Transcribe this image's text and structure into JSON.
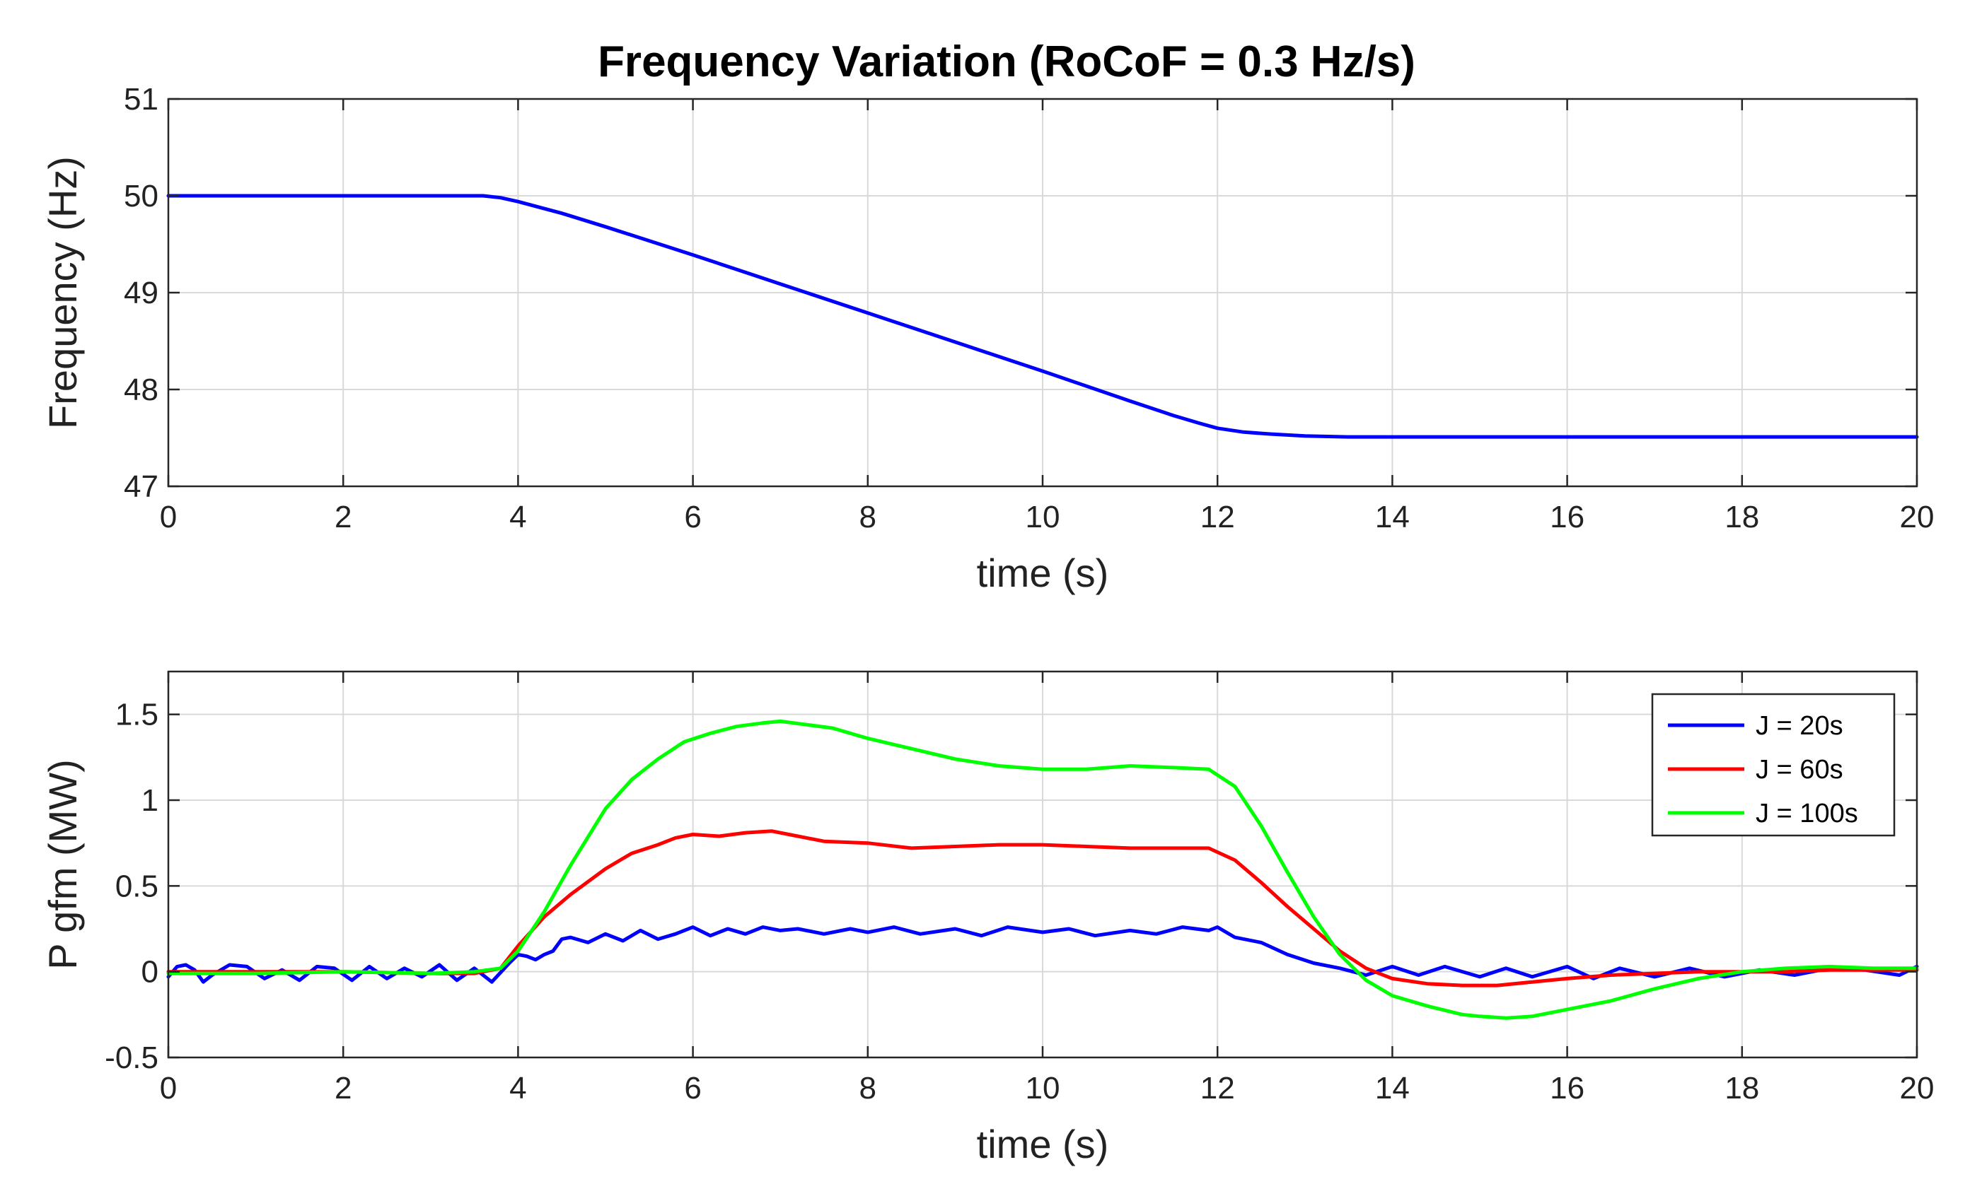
{
  "title": "Frequency Variation (RoCoF = 0.3 Hz/s)",
  "chart_data": [
    {
      "type": "line",
      "xlabel": "time (s)",
      "ylabel": "Frequency (Hz)",
      "xlim": [
        0,
        20
      ],
      "ylim": [
        47,
        51
      ],
      "xticks": [
        0,
        2,
        4,
        6,
        8,
        10,
        12,
        14,
        16,
        18,
        20
      ],
      "yticks": [
        47,
        48,
        49,
        50,
        51
      ],
      "grid": true,
      "series": [
        {
          "name": "Frequency",
          "color": "#0000ff",
          "x": [
            0,
            1,
            2,
            3,
            3.5,
            3.6,
            3.8,
            4,
            4.5,
            5,
            6,
            7,
            8,
            9,
            10,
            11,
            11.5,
            11.8,
            12,
            12.3,
            12.6,
            13,
            13.5,
            14,
            16,
            18,
            20
          ],
          "y": [
            50,
            50,
            50,
            50,
            50,
            50,
            49.98,
            49.94,
            49.82,
            49.68,
            49.39,
            49.09,
            48.79,
            48.49,
            48.19,
            47.88,
            47.73,
            47.65,
            47.6,
            47.56,
            47.54,
            47.52,
            47.51,
            47.51,
            47.51,
            47.51,
            47.51
          ]
        }
      ]
    },
    {
      "type": "line",
      "xlabel": "time (s)",
      "ylabel": "P gfm (MW)",
      "xlim": [
        0,
        20
      ],
      "ylim": [
        -0.5,
        1.75
      ],
      "xticks": [
        0,
        2,
        4,
        6,
        8,
        10,
        12,
        14,
        16,
        18,
        20
      ],
      "yticks": [
        -0.5,
        0,
        0.5,
        1,
        1.5
      ],
      "ytick_labels": [
        "-0.5",
        "0",
        "0.5",
        "1",
        "1.5"
      ],
      "grid": true,
      "legend": "top-right",
      "series": [
        {
          "name": "J = 20s",
          "color": "#0000ff",
          "x": [
            0,
            0.1,
            0.2,
            0.3,
            0.4,
            0.5,
            0.7,
            0.9,
            1.1,
            1.3,
            1.5,
            1.7,
            1.9,
            2.1,
            2.3,
            2.5,
            2.7,
            2.9,
            3.1,
            3.3,
            3.5,
            3.7,
            3.9,
            4.0,
            4.1,
            4.2,
            4.3,
            4.4,
            4.5,
            4.6,
            4.8,
            5.0,
            5.2,
            5.4,
            5.6,
            5.8,
            6.0,
            6.2,
            6.4,
            6.6,
            6.8,
            7.0,
            7.2,
            7.5,
            7.8,
            8.0,
            8.3,
            8.6,
            9.0,
            9.3,
            9.6,
            10.0,
            10.3,
            10.6,
            11.0,
            11.3,
            11.6,
            11.9,
            12.0,
            12.2,
            12.5,
            12.8,
            13.1,
            13.4,
            13.7,
            14.0,
            14.3,
            14.6,
            15.0,
            15.3,
            15.6,
            16.0,
            16.3,
            16.6,
            17.0,
            17.4,
            17.8,
            18.2,
            18.6,
            19.0,
            19.4,
            19.8,
            20.0
          ],
          "y": [
            -0.03,
            0.03,
            0.04,
            0.01,
            -0.06,
            -0.02,
            0.04,
            0.03,
            -0.04,
            0.01,
            -0.05,
            0.03,
            0.02,
            -0.05,
            0.03,
            -0.04,
            0.02,
            -0.03,
            0.04,
            -0.05,
            0.02,
            -0.06,
            0.05,
            0.1,
            0.09,
            0.07,
            0.1,
            0.12,
            0.19,
            0.2,
            0.17,
            0.22,
            0.18,
            0.24,
            0.19,
            0.22,
            0.26,
            0.21,
            0.25,
            0.22,
            0.26,
            0.24,
            0.25,
            0.22,
            0.25,
            0.23,
            0.26,
            0.22,
            0.25,
            0.21,
            0.26,
            0.23,
            0.25,
            0.21,
            0.24,
            0.22,
            0.26,
            0.24,
            0.26,
            0.2,
            0.17,
            0.1,
            0.05,
            0.02,
            -0.02,
            0.03,
            -0.02,
            0.03,
            -0.03,
            0.02,
            -0.03,
            0.03,
            -0.04,
            0.02,
            -0.03,
            0.02,
            -0.03,
            0.01,
            -0.02,
            0.02,
            0.01,
            -0.02,
            0.03
          ]
        },
        {
          "name": "J = 60s",
          "color": "#ff0000",
          "x": [
            0,
            1,
            2,
            3,
            3.5,
            3.8,
            4.0,
            4.3,
            4.6,
            5.0,
            5.3,
            5.6,
            5.8,
            6.0,
            6.3,
            6.6,
            6.9,
            7.2,
            7.5,
            8.0,
            8.5,
            9.0,
            9.5,
            10.0,
            10.5,
            11.0,
            11.5,
            11.9,
            12.2,
            12.5,
            12.8,
            13.1,
            13.4,
            13.7,
            14.0,
            14.4,
            14.8,
            15.2,
            15.6,
            16.0,
            16.5,
            17.0,
            17.5,
            18.0,
            18.5,
            19.0,
            19.5,
            20.0
          ],
          "y": [
            0.0,
            0.0,
            0.0,
            -0.01,
            -0.01,
            0.02,
            0.15,
            0.32,
            0.45,
            0.6,
            0.69,
            0.74,
            0.78,
            0.8,
            0.79,
            0.81,
            0.82,
            0.79,
            0.76,
            0.75,
            0.72,
            0.73,
            0.74,
            0.74,
            0.73,
            0.72,
            0.72,
            0.72,
            0.65,
            0.52,
            0.38,
            0.25,
            0.12,
            0.02,
            -0.04,
            -0.07,
            -0.08,
            -0.08,
            -0.06,
            -0.04,
            -0.02,
            -0.01,
            0.0,
            0.0,
            0.0,
            0.01,
            0.01,
            0.01
          ]
        },
        {
          "name": "J = 100s",
          "color": "#00ff00",
          "x": [
            0,
            1,
            2,
            3,
            3.5,
            3.8,
            4.0,
            4.3,
            4.6,
            5.0,
            5.3,
            5.6,
            5.9,
            6.2,
            6.5,
            6.8,
            7.0,
            7.3,
            7.6,
            8.0,
            8.5,
            9.0,
            9.5,
            10.0,
            10.5,
            11.0,
            11.5,
            11.9,
            12.2,
            12.5,
            12.8,
            13.1,
            13.4,
            13.7,
            14.0,
            14.4,
            14.8,
            15.0,
            15.3,
            15.6,
            16.0,
            16.5,
            17.0,
            17.5,
            18.0,
            18.5,
            19.0,
            19.5,
            20.0
          ],
          "y": [
            -0.01,
            -0.01,
            0.0,
            -0.01,
            0.0,
            0.02,
            0.12,
            0.35,
            0.62,
            0.95,
            1.12,
            1.24,
            1.34,
            1.39,
            1.43,
            1.45,
            1.46,
            1.44,
            1.42,
            1.36,
            1.3,
            1.24,
            1.2,
            1.18,
            1.18,
            1.2,
            1.19,
            1.18,
            1.08,
            0.85,
            0.58,
            0.32,
            0.1,
            -0.05,
            -0.14,
            -0.2,
            -0.25,
            -0.26,
            -0.27,
            -0.26,
            -0.22,
            -0.17,
            -0.1,
            -0.04,
            0.0,
            0.02,
            0.03,
            0.02,
            0.02
          ]
        }
      ]
    }
  ]
}
